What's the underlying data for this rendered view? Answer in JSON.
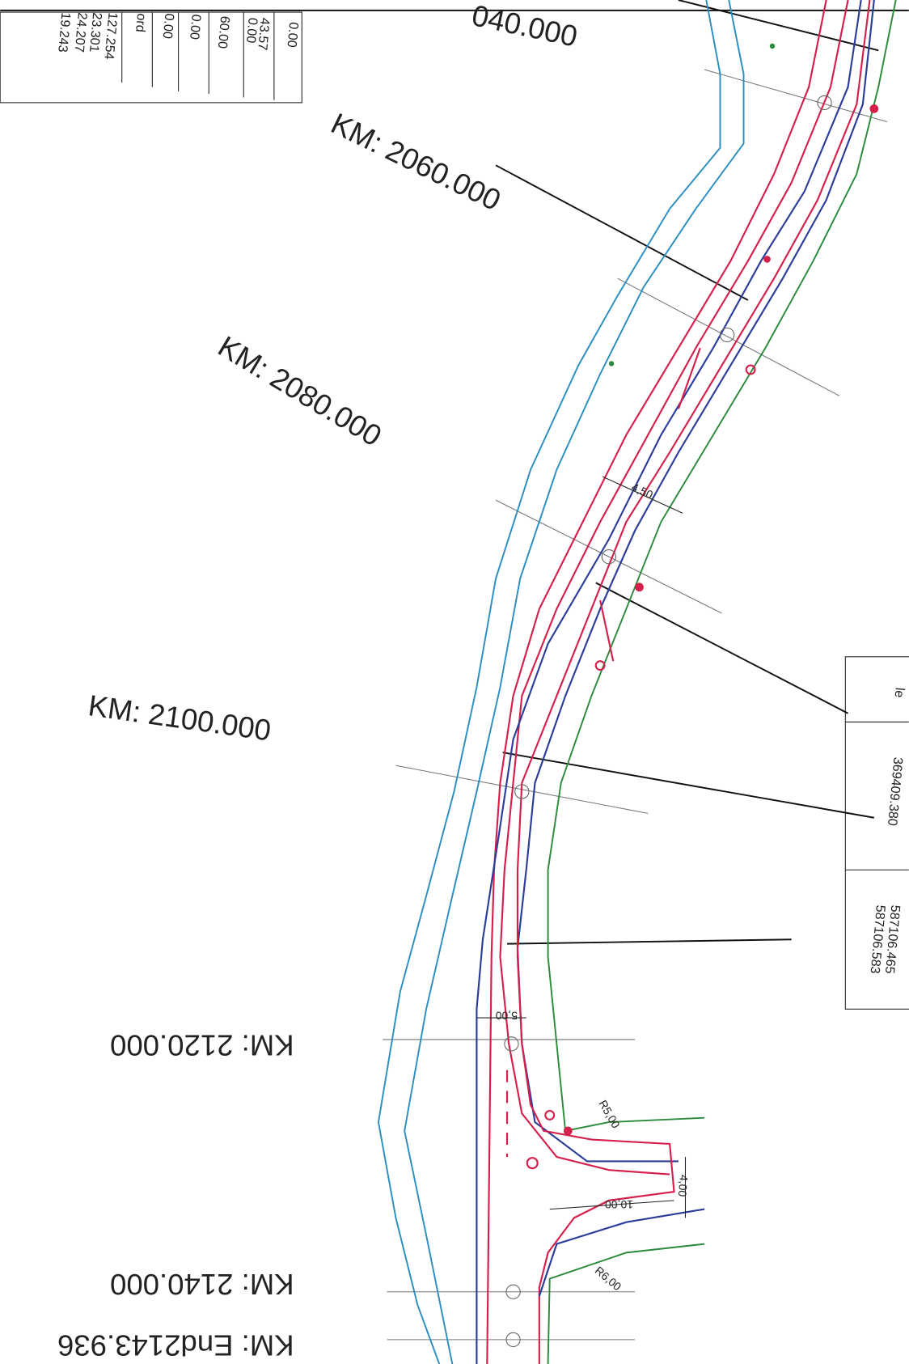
{
  "stations": [
    "040.000",
    "KM: 2060.000",
    "KM: 2080.000",
    "KM: 2100.000",
    "KM: 2120.000",
    "KM: 2140.000",
    "KM: End2143.936"
  ],
  "top_table": [
    "0.00",
    "43.57",
    "0.00",
    "60.00",
    "0.00",
    "0.00",
    "ord",
    "127.254",
    "23.301",
    "24.207",
    "19.243"
  ],
  "right_table": [
    "le",
    "369409.380",
    "587106.465",
    "587106.583"
  ],
  "dimensions": [
    "4,50",
    "5,00",
    "10,00",
    "4,00",
    "R5,00",
    "R6,00"
  ]
}
